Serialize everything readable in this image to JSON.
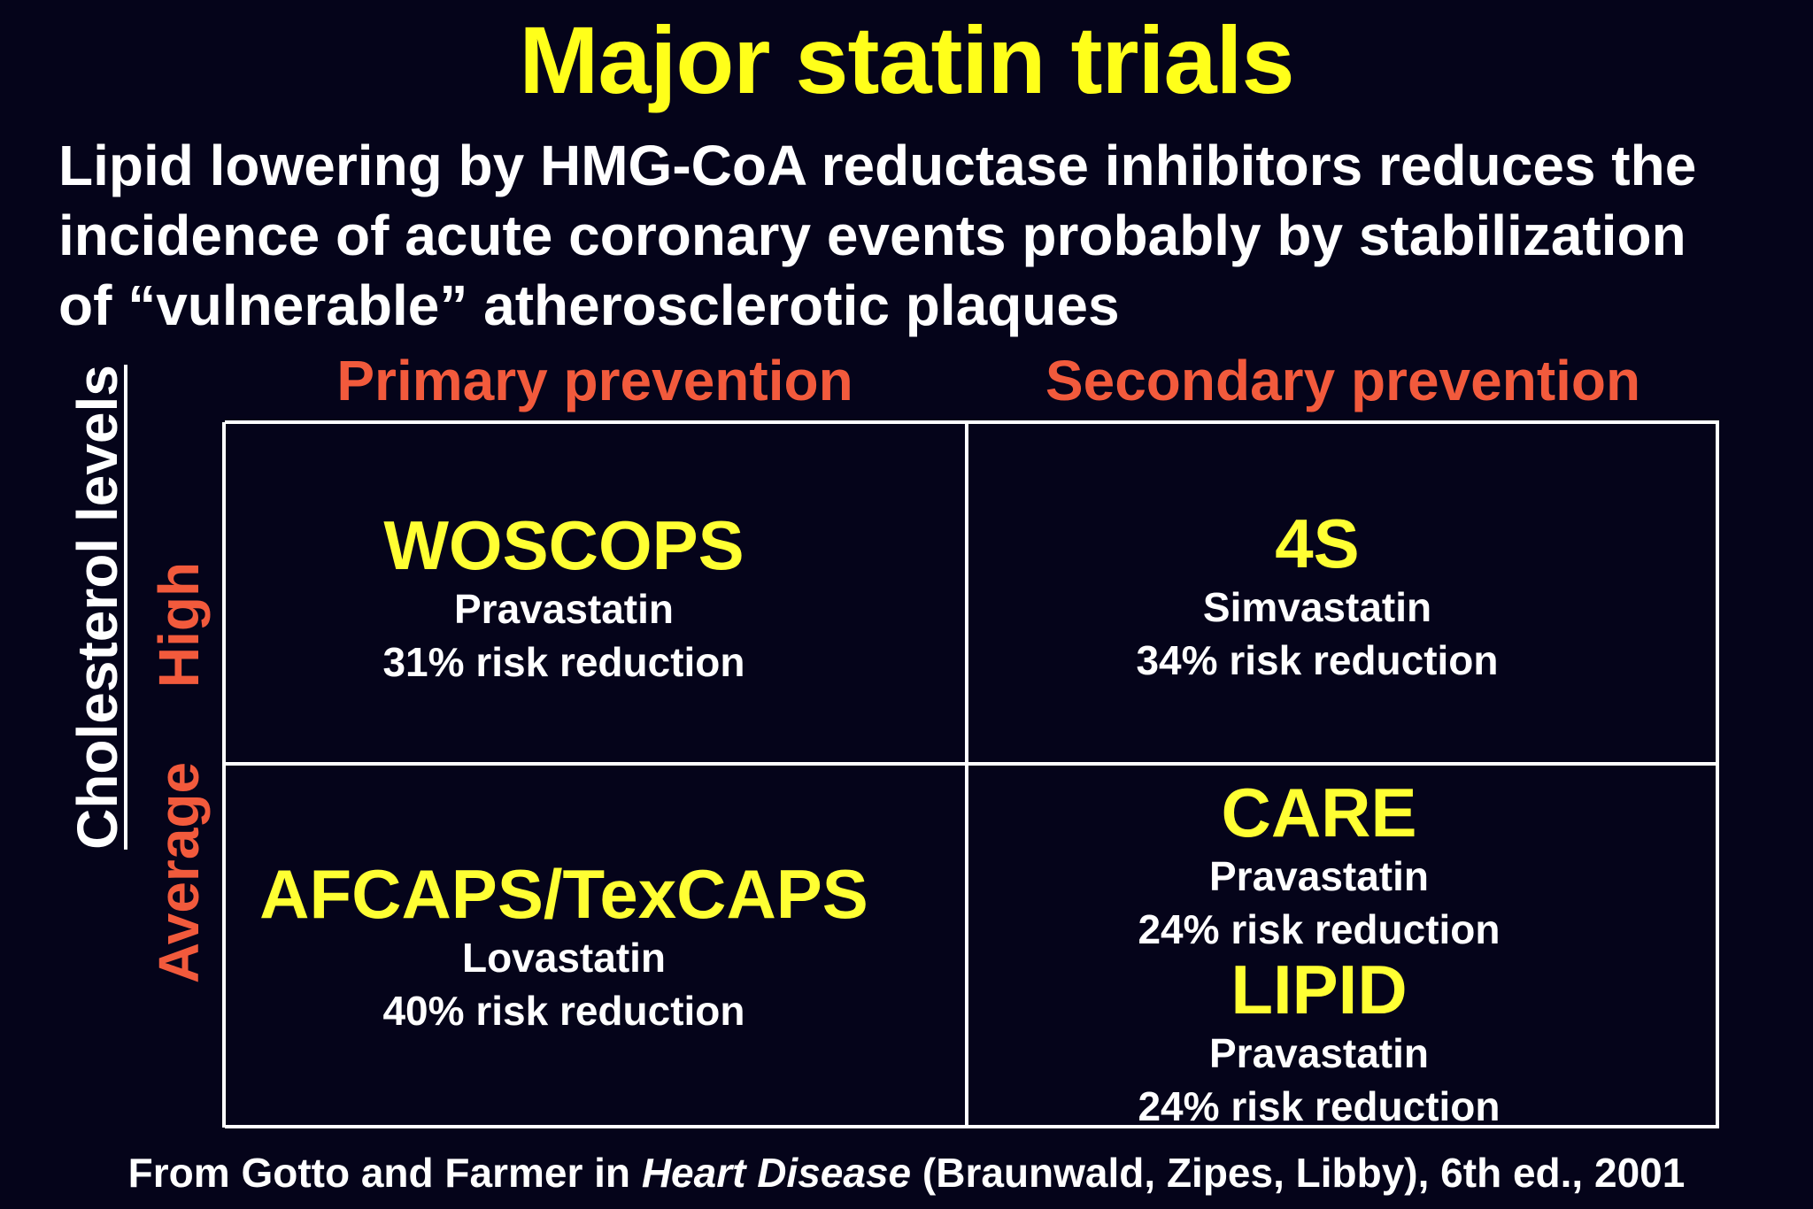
{
  "title": "Major statin trials",
  "subtitle": {
    "line1": "Lipid lowering by HMG-CoA reductase inhibitors reduces the",
    "line2": "incidence of acute coronary events probably by stabilization",
    "line3": "of “vulnerable” atherosclerotic plaques"
  },
  "columns": {
    "primary": "Primary prevention",
    "secondary": "Secondary prevention"
  },
  "y_axis": {
    "title": "Cholesterol levels",
    "high": "High",
    "average": "Average"
  },
  "cells": {
    "high_primary": {
      "trial": "WOSCOPS",
      "drug": "Pravastatin",
      "reduction": "31% risk reduction"
    },
    "high_secondary": {
      "trial": "4S",
      "drug": "Simvastatin",
      "reduction": "34% risk reduction"
    },
    "average_primary": {
      "trial": "AFCAPS/TexCAPS",
      "drug": "Lovastatin",
      "reduction": "40% risk reduction"
    },
    "average_secondary": [
      {
        "trial": "CARE",
        "drug": "Pravastatin",
        "reduction": "24% risk reduction"
      },
      {
        "trial": "LIPID",
        "drug": "Pravastatin",
        "reduction": "24% risk reduction"
      }
    ]
  },
  "footer": {
    "prefix": "From Gotto and Farmer in ",
    "book": "Heart Disease",
    "suffix": " (Braunwald, Zipes, Libby), 6th ed., 2001"
  },
  "colors": {
    "background": "#05041a",
    "title": "#ffff1a",
    "trial": "#ffff33",
    "accent": "#f25a3c",
    "text": "#ffffff"
  }
}
